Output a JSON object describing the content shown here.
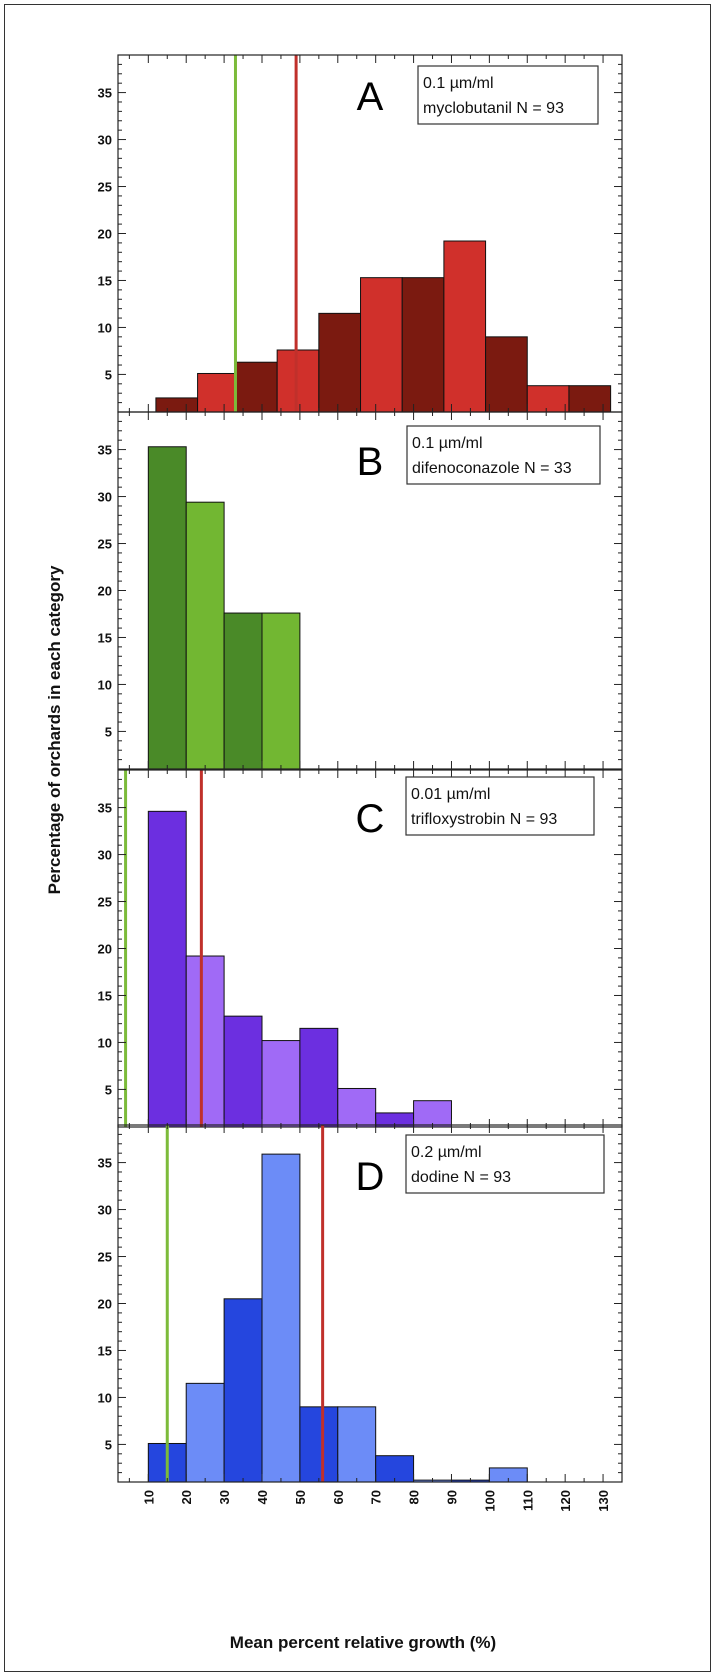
{
  "chart_data": {
    "type": "bar",
    "xlabel": "Mean percent relative growth (%)",
    "ylabel": "Percentage of orchards in each category",
    "x_ticks": [
      10,
      20,
      30,
      40,
      50,
      60,
      70,
      80,
      90,
      100,
      110,
      120,
      130
    ],
    "x_range": [
      2,
      135
    ],
    "y_ticks": [
      5,
      10,
      15,
      20,
      25,
      30,
      35
    ],
    "y_range": [
      1,
      39
    ],
    "panels": [
      {
        "id": "A",
        "letter": "A",
        "legend_line1": "0.1 µm/ml",
        "legend_line2": "myclobutanil N = 93",
        "color_dark": "#7b1a10",
        "color_light": "#d0302b",
        "bins": [
          {
            "x0": 12,
            "x1": 23,
            "value": 2.5
          },
          {
            "x0": 23,
            "x1": 33,
            "value": 5.1
          },
          {
            "x0": 33,
            "x1": 44,
            "value": 6.3
          },
          {
            "x0": 44,
            "x1": 55,
            "value": 7.6
          },
          {
            "x0": 55,
            "x1": 66,
            "value": 11.5
          },
          {
            "x0": 66,
            "x1": 77,
            "value": 15.3
          },
          {
            "x0": 77,
            "x1": 88,
            "value": 15.3
          },
          {
            "x0": 88,
            "x1": 99,
            "value": 19.2
          },
          {
            "x0": 99,
            "x1": 110,
            "value": 9.0
          },
          {
            "x0": 110,
            "x1": 121,
            "value": 3.8
          },
          {
            "x0": 121,
            "x1": 132,
            "value": 3.8
          }
        ],
        "green_line": 33,
        "red_line": 49
      },
      {
        "id": "B",
        "letter": "B",
        "legend_line1": "0.1 µm/ml",
        "legend_line2": "difenoconazole N = 33",
        "color_dark": "#4a8a28",
        "color_light": "#72b732",
        "bins": [
          {
            "x0": 10,
            "x1": 20,
            "value": 35.3
          },
          {
            "x0": 20,
            "x1": 30,
            "value": 29.4
          },
          {
            "x0": 30,
            "x1": 40,
            "value": 17.6
          },
          {
            "x0": 40,
            "x1": 50,
            "value": 17.6
          }
        ],
        "green_line": null,
        "red_line": null
      },
      {
        "id": "C",
        "letter": "C",
        "legend_line1": "0.01 µm/ml",
        "legend_line2": "trifloxystrobin N = 93",
        "color_dark": "#6c2fe0",
        "color_light": "#a06af6",
        "bins": [
          {
            "x0": 10,
            "x1": 20,
            "value": 34.6
          },
          {
            "x0": 20,
            "x1": 30,
            "value": 19.2
          },
          {
            "x0": 30,
            "x1": 40,
            "value": 12.8
          },
          {
            "x0": 40,
            "x1": 50,
            "value": 10.2
          },
          {
            "x0": 50,
            "x1": 60,
            "value": 11.5
          },
          {
            "x0": 60,
            "x1": 70,
            "value": 5.1
          },
          {
            "x0": 70,
            "x1": 80,
            "value": 2.5
          },
          {
            "x0": 80,
            "x1": 90,
            "value": 3.8
          }
        ],
        "green_line": 4,
        "red_line": 24
      },
      {
        "id": "D",
        "letter": "D",
        "legend_line1": "0.2 µm/ml",
        "legend_line2": "dodine N = 93",
        "color_dark": "#2546de",
        "color_light": "#6c8cf7",
        "bins": [
          {
            "x0": 10,
            "x1": 20,
            "value": 5.1
          },
          {
            "x0": 20,
            "x1": 30,
            "value": 11.5
          },
          {
            "x0": 30,
            "x1": 40,
            "value": 20.5
          },
          {
            "x0": 40,
            "x1": 50,
            "value": 35.9
          },
          {
            "x0": 50,
            "x1": 60,
            "value": 9.0
          },
          {
            "x0": 60,
            "x1": 70,
            "value": 9.0
          },
          {
            "x0": 70,
            "x1": 80,
            "value": 3.8
          },
          {
            "x0": 80,
            "x1": 90,
            "value": 1.2
          },
          {
            "x0": 90,
            "x1": 100,
            "value": 1.2
          },
          {
            "x0": 100,
            "x1": 110,
            "value": 2.5
          }
        ],
        "green_line": 15,
        "red_line": 56
      }
    ]
  },
  "colors": {
    "green_line": "#7cbb3a",
    "red_line": "#c0302b"
  }
}
